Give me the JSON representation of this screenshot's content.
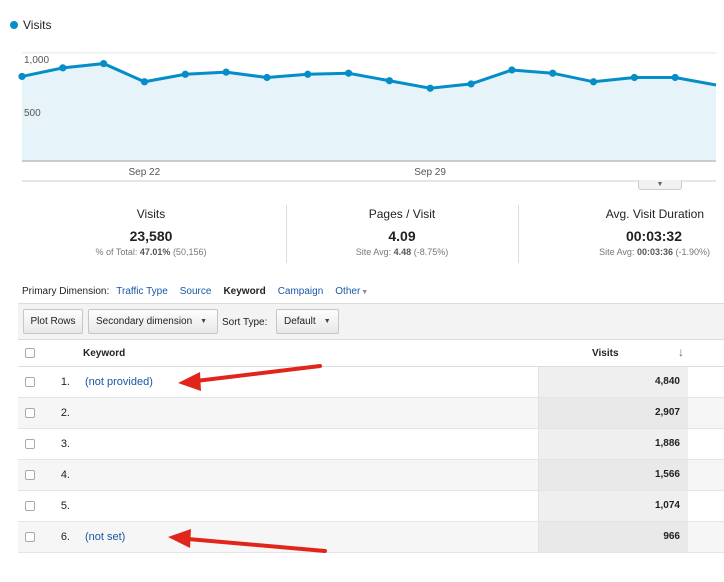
{
  "chart_data": {
    "type": "line",
    "title": "",
    "series": [
      {
        "name": "Visits",
        "values": [
          780,
          860,
          900,
          730,
          800,
          820,
          770,
          800,
          810,
          740,
          670,
          710,
          840,
          810,
          730,
          770,
          770,
          700
        ]
      }
    ],
    "y_tick_labels": [
      "1,000",
      "500"
    ],
    "y_ticks": [
      1000,
      500
    ],
    "ylim": [
      0,
      1120
    ],
    "x_tick_labels": [
      "Sep 22",
      "Sep 29"
    ],
    "x_tick_index": [
      3,
      10
    ],
    "legend": "top-left",
    "grid": true,
    "colors": {
      "line": "#058dc7",
      "fill": "#e6f3f9"
    }
  },
  "scorecards": [
    {
      "label": "Visits",
      "value": "23,580",
      "sub_prefix": "% of Total:",
      "sub_value": "47.01%",
      "sub_suffix": "(50,156)"
    },
    {
      "label": "Pages / Visit",
      "value": "4.09",
      "sub_prefix": "Site Avg:",
      "sub_value": "4.48",
      "sub_suffix": "(-8.75%)"
    },
    {
      "label": "Avg. Visit Duration",
      "value": "00:03:32",
      "sub_prefix": "Site Avg:",
      "sub_value": "00:03:36",
      "sub_suffix": "(-1.90%)"
    }
  ],
  "dimension_bar": {
    "label": "Primary Dimension:",
    "links": [
      "Traffic Type",
      "Source"
    ],
    "active": "Keyword",
    "more_links": [
      "Campaign"
    ],
    "other": "Other"
  },
  "toolbar": {
    "plot_rows": "Plot Rows",
    "secondary_dimension": "Secondary dimension",
    "sort_type_label": "Sort Type:",
    "sort_type_value": "Default"
  },
  "table": {
    "headers": {
      "keyword": "Keyword",
      "visits": "Visits"
    },
    "rows": [
      {
        "index": "1.",
        "keyword": "(not provided)",
        "visits": "4,840",
        "redacted": false
      },
      {
        "index": "2.",
        "keyword": "",
        "visits": "2,907",
        "redacted": false
      },
      {
        "index": "3.",
        "keyword": "",
        "visits": "1,886",
        "redacted": true
      },
      {
        "index": "4.",
        "keyword": "",
        "visits": "1,566",
        "redacted": false
      },
      {
        "index": "5.",
        "keyword": "",
        "visits": "1,074",
        "redacted": true
      },
      {
        "index": "6.",
        "keyword": "(not set)",
        "visits": "966",
        "redacted": false
      }
    ]
  },
  "annotation_color": "#e0261b"
}
